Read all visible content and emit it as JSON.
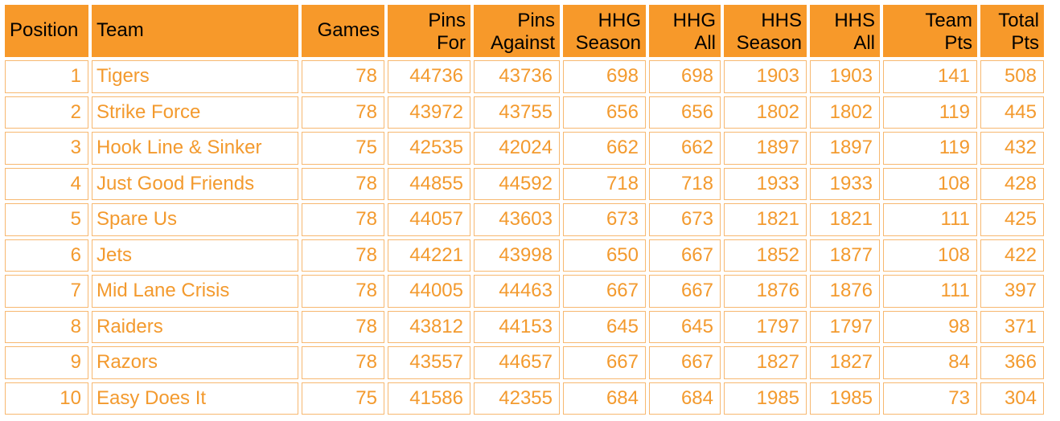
{
  "columns": [
    {
      "key": "position",
      "lines": [
        "Position"
      ]
    },
    {
      "key": "team",
      "lines": [
        "Team"
      ]
    },
    {
      "key": "games",
      "lines": [
        "Games"
      ]
    },
    {
      "key": "pins_for",
      "lines": [
        "Pins",
        "For"
      ]
    },
    {
      "key": "pins_against",
      "lines": [
        "Pins",
        "Against"
      ]
    },
    {
      "key": "hhg_season",
      "lines": [
        "HHG",
        "Season"
      ]
    },
    {
      "key": "hhg_all",
      "lines": [
        "HHG",
        "All"
      ]
    },
    {
      "key": "hhs_season",
      "lines": [
        "HHS",
        "Season"
      ]
    },
    {
      "key": "hhs_all",
      "lines": [
        "HHS",
        "All"
      ]
    },
    {
      "key": "team_pts",
      "lines": [
        "Team",
        "Pts"
      ]
    },
    {
      "key": "total_pts",
      "lines": [
        "Total",
        "Pts"
      ]
    }
  ],
  "rows": [
    {
      "position": "1",
      "team": "Tigers",
      "games": "78",
      "pins_for": "44736",
      "pins_against": "43736",
      "hhg_season": "698",
      "hhg_all": "698",
      "hhs_season": "1903",
      "hhs_all": "1903",
      "team_pts": "141",
      "total_pts": "508"
    },
    {
      "position": "2",
      "team": "Strike Force",
      "games": "78",
      "pins_for": "43972",
      "pins_against": "43755",
      "hhg_season": "656",
      "hhg_all": "656",
      "hhs_season": "1802",
      "hhs_all": "1802",
      "team_pts": "119",
      "total_pts": "445"
    },
    {
      "position": "3",
      "team": "Hook Line & Sinker",
      "games": "75",
      "pins_for": "42535",
      "pins_against": "42024",
      "hhg_season": "662",
      "hhg_all": "662",
      "hhs_season": "1897",
      "hhs_all": "1897",
      "team_pts": "119",
      "total_pts": "432"
    },
    {
      "position": "4",
      "team": "Just Good Friends",
      "games": "78",
      "pins_for": "44855",
      "pins_against": "44592",
      "hhg_season": "718",
      "hhg_all": "718",
      "hhs_season": "1933",
      "hhs_all": "1933",
      "team_pts": "108",
      "total_pts": "428"
    },
    {
      "position": "5",
      "team": "Spare Us",
      "games": "78",
      "pins_for": "44057",
      "pins_against": "43603",
      "hhg_season": "673",
      "hhg_all": "673",
      "hhs_season": "1821",
      "hhs_all": "1821",
      "team_pts": "111",
      "total_pts": "425"
    },
    {
      "position": "6",
      "team": "Jets",
      "games": "78",
      "pins_for": "44221",
      "pins_against": "43998",
      "hhg_season": "650",
      "hhg_all": "667",
      "hhs_season": "1852",
      "hhs_all": "1877",
      "team_pts": "108",
      "total_pts": "422"
    },
    {
      "position": "7",
      "team": "Mid Lane Crisis",
      "games": "78",
      "pins_for": "44005",
      "pins_against": "44463",
      "hhg_season": "667",
      "hhg_all": "667",
      "hhs_season": "1876",
      "hhs_all": "1876",
      "team_pts": "111",
      "total_pts": "397"
    },
    {
      "position": "8",
      "team": "Raiders",
      "games": "78",
      "pins_for": "43812",
      "pins_against": "44153",
      "hhg_season": "645",
      "hhg_all": "645",
      "hhs_season": "1797",
      "hhs_all": "1797",
      "team_pts": "98",
      "total_pts": "371"
    },
    {
      "position": "9",
      "team": "Razors",
      "games": "78",
      "pins_for": "43557",
      "pins_against": "44657",
      "hhg_season": "667",
      "hhg_all": "667",
      "hhs_season": "1827",
      "hhs_all": "1827",
      "team_pts": "84",
      "total_pts": "366"
    },
    {
      "position": "10",
      "team": "Easy Does It",
      "games": "75",
      "pins_for": "41586",
      "pins_against": "42355",
      "hhg_season": "684",
      "hhg_all": "684",
      "hhs_season": "1985",
      "hhs_all": "1985",
      "team_pts": "73",
      "total_pts": "304"
    }
  ],
  "colors": {
    "header_bg": "#f7992a",
    "cell_text": "#f39a2e",
    "cell_border": "#f7b870"
  }
}
